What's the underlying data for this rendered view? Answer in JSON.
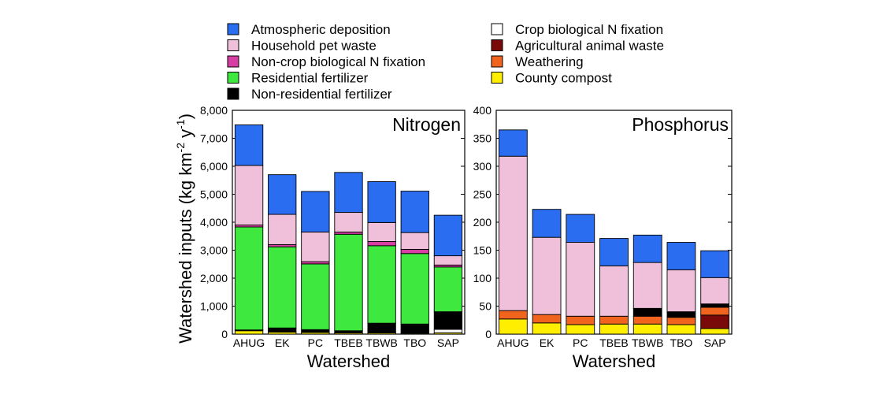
{
  "legend": {
    "items": [
      {
        "key": "atm",
        "label": "Atmospheric deposition",
        "color": "#2b6df0"
      },
      {
        "key": "pet",
        "label": "Household pet waste",
        "color": "#f0c0da"
      },
      {
        "key": "noncrop",
        "label": "Non-crop biological N fixation",
        "color": "#d63ea4"
      },
      {
        "key": "resfert",
        "label": "Residential fertilizer",
        "color": "#3ee83e"
      },
      {
        "key": "nonres",
        "label": "Non-residential fertilizer",
        "color": "#000000"
      },
      {
        "key": "crop",
        "label": "Crop biological N fixation",
        "color": "#ffffff"
      },
      {
        "key": "animal",
        "label": "Agricultural animal waste",
        "color": "#7a0a0a"
      },
      {
        "key": "weather",
        "label": "Weathering",
        "color": "#f0641e"
      },
      {
        "key": "compost",
        "label": "County compost",
        "color": "#ffee00"
      }
    ]
  },
  "ylabel": "Watershed inputs (kg km⁻² y⁻¹)",
  "ylabel_parts": {
    "main": "Watershed inputs (kg km",
    "exp1": "-2",
    "mid": " y",
    "exp2": "-1",
    "end": ")"
  },
  "chart_data": [
    {
      "type": "bar",
      "stacked": true,
      "title": "Nitrogen",
      "xlabel": "Watershed",
      "ylim": [
        0,
        8000
      ],
      "yticks": [
        0,
        1000,
        2000,
        3000,
        4000,
        5000,
        6000,
        7000,
        8000
      ],
      "ytick_labels": [
        "0",
        "1,000",
        "2,000",
        "3,000",
        "4,000",
        "5,000",
        "6,000",
        "7,000",
        "8,000"
      ],
      "categories": [
        "AHUG",
        "EK",
        "PC",
        "TBEB",
        "TBWB",
        "TBO",
        "SAP"
      ],
      "series": [
        {
          "name": "County compost",
          "key": "compost",
          "values": [
            120,
            70,
            60,
            40,
            40,
            30,
            50
          ]
        },
        {
          "name": "Weathering",
          "key": "weather",
          "values": [
            0,
            0,
            0,
            0,
            0,
            0,
            0
          ]
        },
        {
          "name": "Agricultural animal waste",
          "key": "animal",
          "values": [
            0,
            0,
            0,
            0,
            0,
            0,
            0
          ]
        },
        {
          "name": "Crop biological N fixation",
          "key": "crop",
          "values": [
            0,
            0,
            0,
            0,
            0,
            0,
            120
          ]
        },
        {
          "name": "Non-residential fertilizer",
          "key": "nonres",
          "values": [
            30,
            150,
            100,
            80,
            350,
            330,
            630
          ]
        },
        {
          "name": "Residential fertilizer",
          "key": "resfert",
          "values": [
            3680,
            2900,
            2350,
            3450,
            2770,
            2520,
            1600
          ]
        },
        {
          "name": "Non-crop biological N fixation",
          "key": "noncrop",
          "values": [
            70,
            80,
            80,
            80,
            150,
            150,
            70
          ]
        },
        {
          "name": "Household pet waste",
          "key": "pet",
          "values": [
            2130,
            1080,
            1060,
            700,
            680,
            600,
            330
          ]
        },
        {
          "name": "Atmospheric deposition",
          "key": "atm",
          "values": [
            1450,
            1420,
            1450,
            1430,
            1460,
            1480,
            1450
          ]
        }
      ]
    },
    {
      "type": "bar",
      "stacked": true,
      "title": "Phosphorus",
      "xlabel": "Watershed",
      "ylim": [
        0,
        400
      ],
      "yticks": [
        0,
        50,
        100,
        150,
        200,
        250,
        300,
        350,
        400
      ],
      "ytick_labels": [
        "0",
        "50",
        "100",
        "150",
        "200",
        "250",
        "300",
        "350",
        "400"
      ],
      "categories": [
        "AHUG",
        "EK",
        "PC",
        "TBEB",
        "TBWB",
        "TBO",
        "SAP"
      ],
      "series": [
        {
          "name": "County compost",
          "key": "compost",
          "values": [
            27,
            20,
            17,
            18,
            18,
            17,
            10
          ]
        },
        {
          "name": "Agricultural animal waste",
          "key": "animal",
          "values": [
            0,
            0,
            0,
            0,
            0,
            0,
            24
          ]
        },
        {
          "name": "Weathering",
          "key": "weather",
          "values": [
            15,
            15,
            15,
            14,
            14,
            13,
            14
          ]
        },
        {
          "name": "Non-residential fertilizer",
          "key": "nonres",
          "values": [
            0,
            0,
            0,
            0,
            14,
            10,
            6
          ]
        },
        {
          "name": "Household pet waste",
          "key": "pet",
          "values": [
            276,
            138,
            132,
            90,
            82,
            75,
            47
          ]
        },
        {
          "name": "Atmospheric deposition",
          "key": "atm",
          "values": [
            47,
            50,
            50,
            49,
            49,
            49,
            48
          ]
        }
      ]
    }
  ]
}
